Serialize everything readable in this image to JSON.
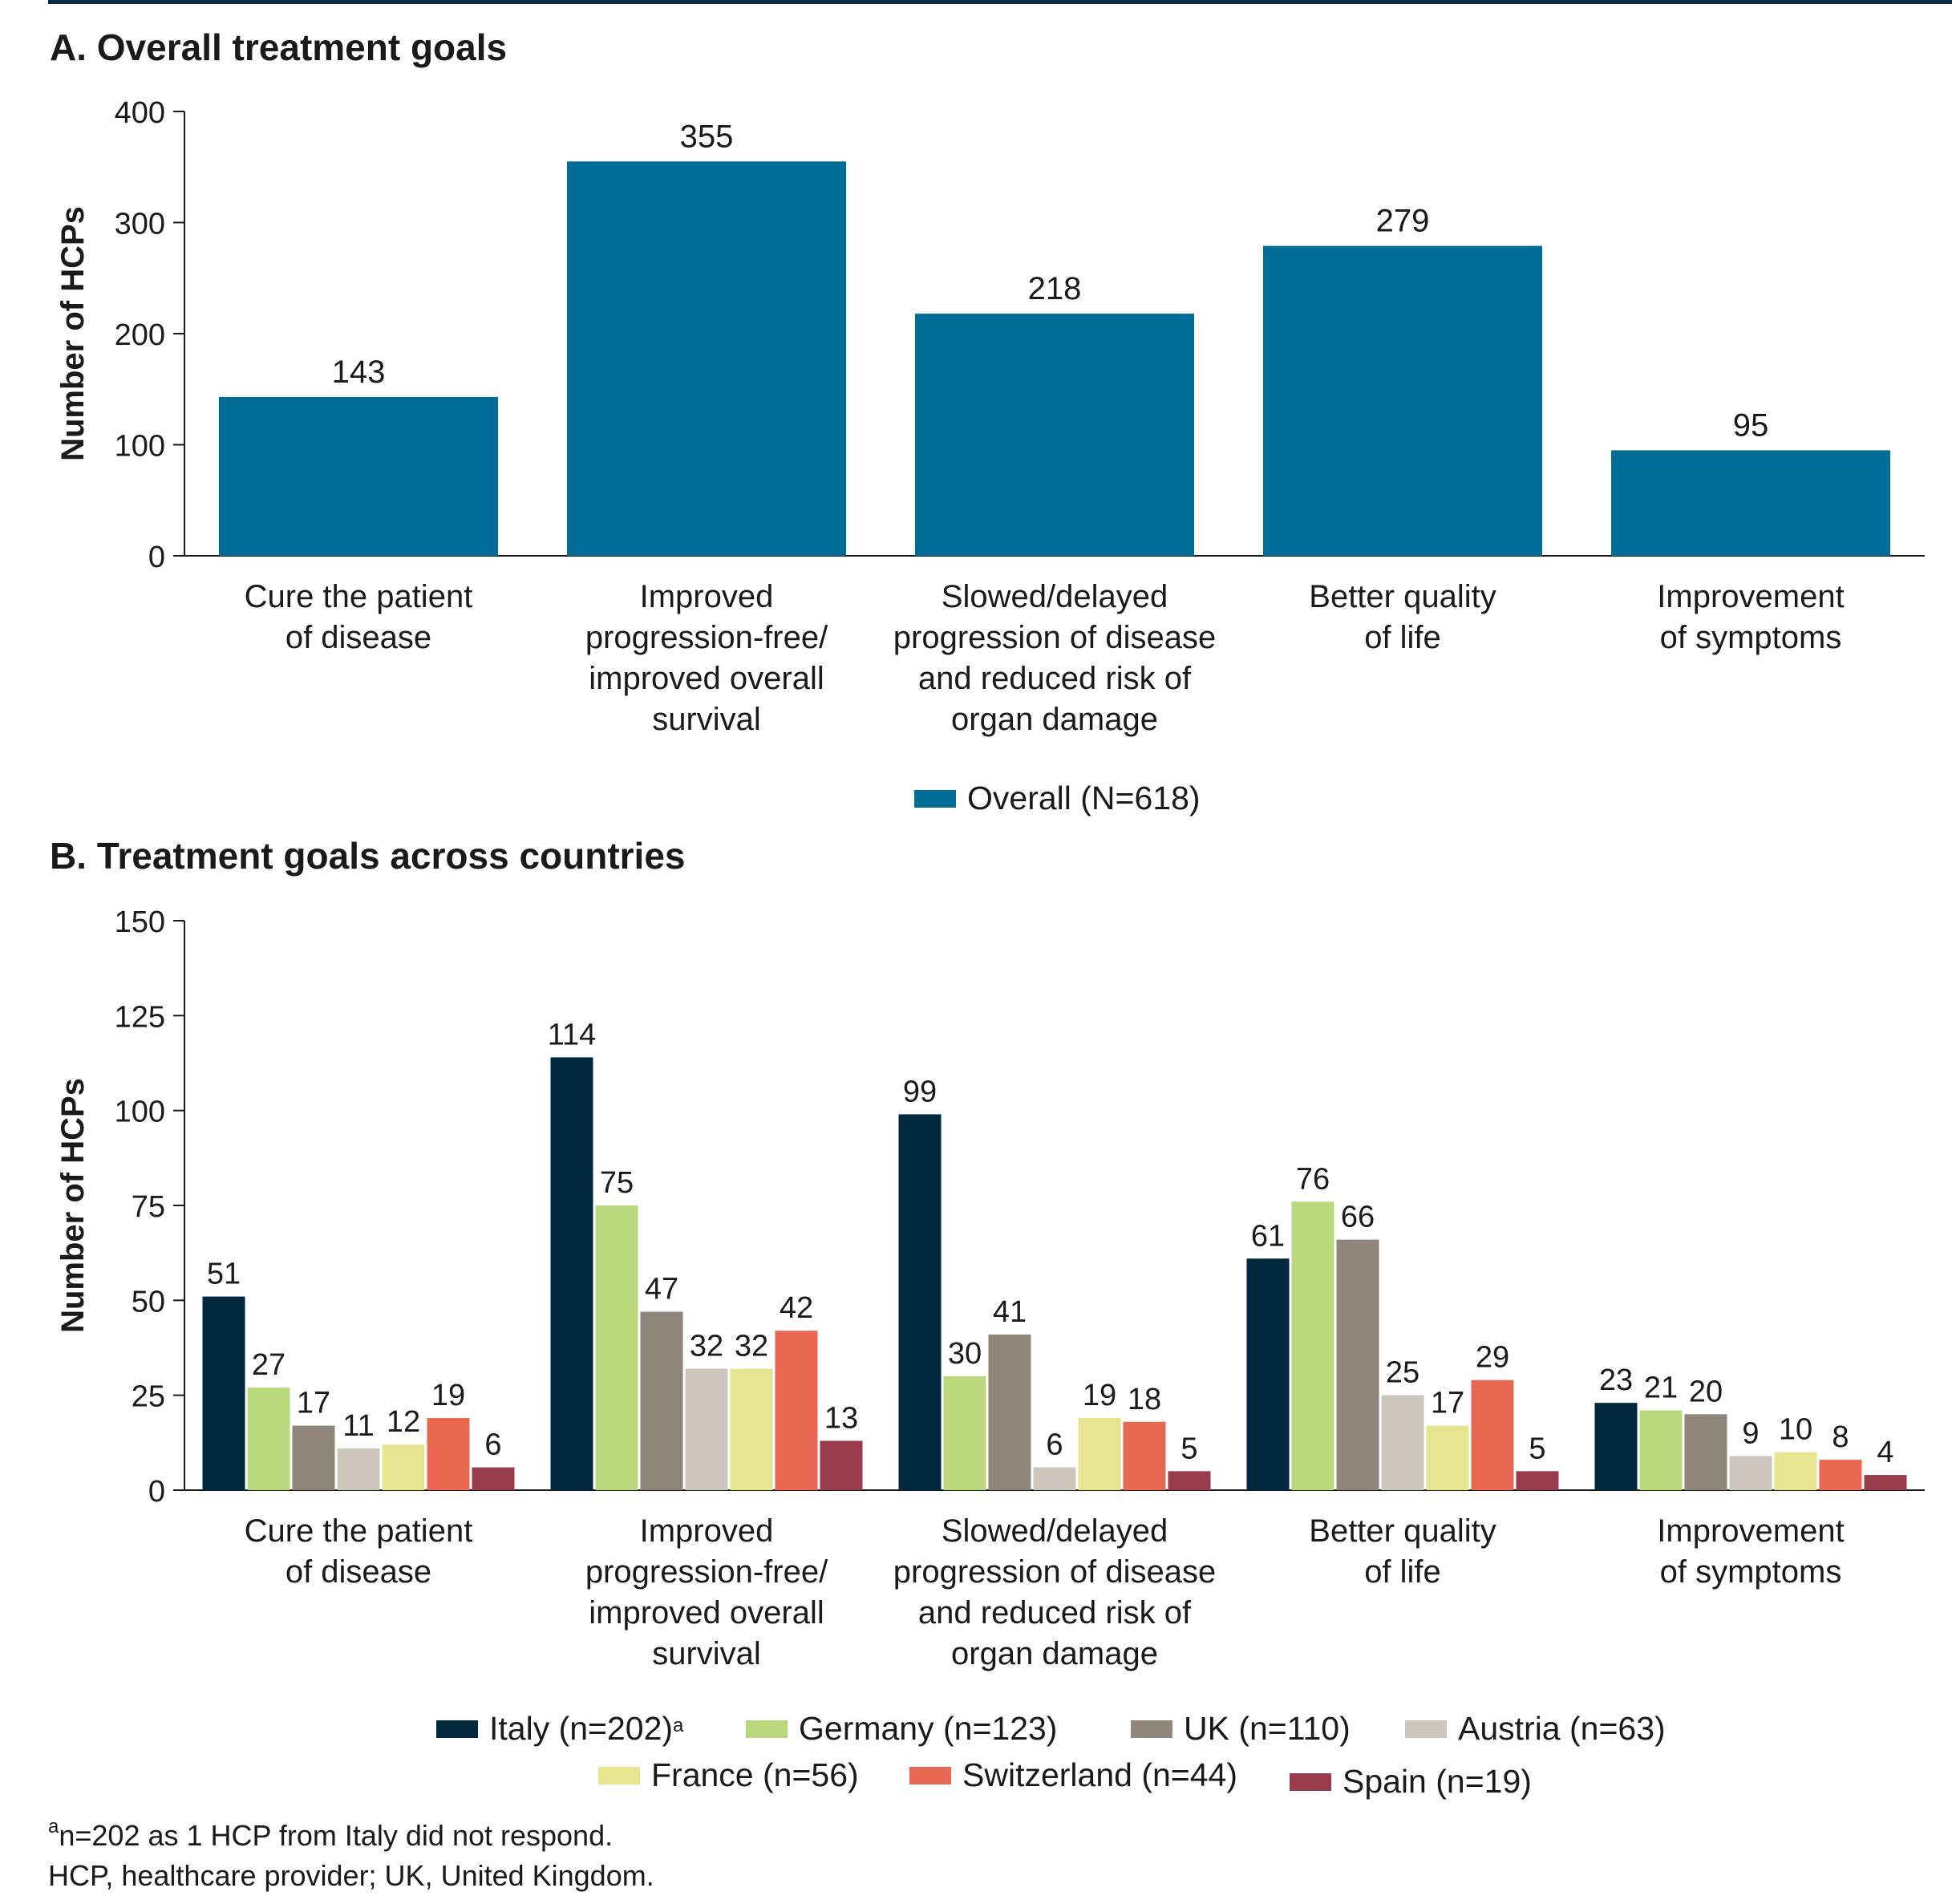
{
  "chart_data": [
    {
      "type": "bar",
      "title": "A. Overall treatment goals",
      "ylabel": "Number of HCPs",
      "xlabel": "",
      "ylim": [
        0,
        400
      ],
      "yticks": [
        "0",
        "100",
        "200",
        "300",
        "400"
      ],
      "categories": [
        [
          "Cure the patient",
          "of disease"
        ],
        [
          "Improved",
          "progression-free/",
          "improved overall",
          "survival"
        ],
        [
          "Slowed/delayed",
          "progression of disease",
          "and reduced risk of",
          "organ damage"
        ],
        [
          "Better quality",
          "of life"
        ],
        [
          "Improvement",
          "of symptoms"
        ]
      ],
      "series": [
        {
          "name": "Overall (N=618)",
          "color": "#006d98",
          "values": [
            143,
            355,
            218,
            279,
            95
          ]
        }
      ],
      "legend_position": "bottom-center"
    },
    {
      "type": "bar",
      "title": "B. Treatment goals across countries",
      "ylabel": "Number of HCPs",
      "xlabel": "",
      "ylim": [
        0,
        150
      ],
      "yticks": [
        "0",
        "25",
        "50",
        "75",
        "100",
        "125",
        "150"
      ],
      "categories": [
        [
          "Cure the patient",
          "of disease"
        ],
        [
          "Improved",
          "progression-free/",
          "improved overall",
          "survival"
        ],
        [
          "Slowed/delayed",
          "progression of disease",
          "and reduced risk of",
          "organ damage"
        ],
        [
          "Better quality",
          "of life"
        ],
        [
          "Improvement",
          "of symptoms"
        ]
      ],
      "series": [
        {
          "name": "Italy (n=202)",
          "sup": "a",
          "color": "#002940",
          "values": [
            51,
            114,
            99,
            61,
            23
          ]
        },
        {
          "name": "Germany (n=123)",
          "color": "#b9d97c",
          "values": [
            27,
            75,
            30,
            76,
            21
          ]
        },
        {
          "name": "UK (n=110)",
          "color": "#8f857a",
          "values": [
            17,
            47,
            41,
            66,
            20
          ]
        },
        {
          "name": "Austria (n=63)",
          "color": "#cdc6bd",
          "values": [
            11,
            32,
            6,
            25,
            9
          ]
        },
        {
          "name": "France (n=56)",
          "color": "#e7e58f",
          "values": [
            12,
            32,
            19,
            17,
            10
          ]
        },
        {
          "name": "Switzerland (n=44)",
          "color": "#e96852",
          "values": [
            19,
            42,
            18,
            29,
            8
          ]
        },
        {
          "name": "Spain (n=19)",
          "color": "#983c4d",
          "values": [
            6,
            13,
            5,
            5,
            4
          ]
        }
      ],
      "legend_position": "bottom-center"
    }
  ],
  "footnotes": {
    "line1_sup": "a",
    "line1": "n=202 as 1 HCP from Italy did not respond.",
    "line2": "HCP, healthcare provider; UK, United Kingdom."
  }
}
